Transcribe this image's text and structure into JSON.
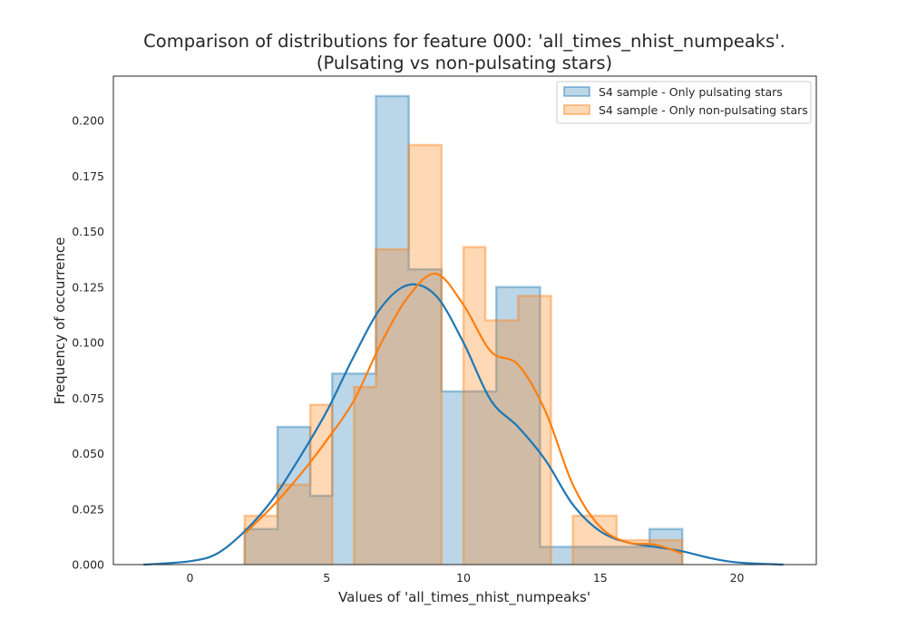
{
  "chart_data": {
    "type": "histogram",
    "title_line1": "Comparison of distributions for feature 000: 'all_times_nhist_numpeaks'.",
    "title_line2": "(Pulsating vs non-pulsating stars)",
    "xlabel": "Values of 'all_times_nhist_numpeaks'",
    "ylabel": "Frequency of occurrence",
    "xlim": [
      -2.8,
      22.9
    ],
    "ylim": [
      0,
      0.22
    ],
    "x_ticks": [
      0,
      5,
      10,
      15,
      20
    ],
    "y_ticks": [
      0.0,
      0.025,
      0.05,
      0.075,
      0.1,
      0.125,
      0.15,
      0.175,
      0.2
    ],
    "y_tick_labels": [
      "0.000",
      "0.025",
      "0.050",
      "0.075",
      "0.100",
      "0.125",
      "0.150",
      "0.175",
      "0.200"
    ],
    "grid": false,
    "legend_position": "top-right",
    "series": [
      {
        "name": "S4 sample - Only pulsating stars",
        "color": "#1f77b4",
        "hist_bins": [
          {
            "x0": 2.0,
            "x1": 3.2,
            "y": 0.016
          },
          {
            "x0": 3.2,
            "x1": 4.4,
            "y": 0.062
          },
          {
            "x0": 4.4,
            "x1": 5.2,
            "y": 0.031
          },
          {
            "x0": 5.2,
            "x1": 6.8,
            "y": 0.086
          },
          {
            "x0": 6.8,
            "x1": 8.0,
            "y": 0.211
          },
          {
            "x0": 8.0,
            "x1": 9.2,
            "y": 0.133
          },
          {
            "x0": 9.2,
            "x1": 10.0,
            "y": 0.078
          },
          {
            "x0": 10.0,
            "x1": 11.2,
            "y": 0.078
          },
          {
            "x0": 11.2,
            "x1": 12.8,
            "y": 0.125
          },
          {
            "x0": 12.8,
            "x1": 14.0,
            "y": 0.008
          },
          {
            "x0": 14.0,
            "x1": 15.2,
            "y": 0.008
          },
          {
            "x0": 15.2,
            "x1": 16.8,
            "y": 0.008
          },
          {
            "x0": 16.8,
            "x1": 18.0,
            "y": 0.016
          }
        ],
        "kde": [
          [
            -1.7,
            0.0
          ],
          [
            0.0,
            0.0015
          ],
          [
            1.0,
            0.005
          ],
          [
            2.0,
            0.015
          ],
          [
            3.0,
            0.029
          ],
          [
            4.0,
            0.048
          ],
          [
            5.0,
            0.069
          ],
          [
            6.0,
            0.094
          ],
          [
            7.0,
            0.116
          ],
          [
            8.0,
            0.126
          ],
          [
            9.0,
            0.121
          ],
          [
            10.0,
            0.1
          ],
          [
            11.0,
            0.074
          ],
          [
            12.0,
            0.062
          ],
          [
            13.0,
            0.047
          ],
          [
            14.0,
            0.027
          ],
          [
            15.0,
            0.015
          ],
          [
            16.0,
            0.01
          ],
          [
            17.0,
            0.008
          ],
          [
            18.0,
            0.006
          ],
          [
            19.0,
            0.003
          ],
          [
            20.0,
            0.001
          ],
          [
            21.7,
            0.0
          ]
        ]
      },
      {
        "name": "S4 sample - Only non-pulsating stars",
        "color": "#ff7f0e",
        "hist_bins": [
          {
            "x0": 2.0,
            "x1": 3.2,
            "y": 0.022
          },
          {
            "x0": 3.2,
            "x1": 4.4,
            "y": 0.036
          },
          {
            "x0": 4.4,
            "x1": 5.2,
            "y": 0.072
          },
          {
            "x0": 6.0,
            "x1": 6.8,
            "y": 0.08
          },
          {
            "x0": 6.8,
            "x1": 8.0,
            "y": 0.142
          },
          {
            "x0": 8.0,
            "x1": 9.2,
            "y": 0.189
          },
          {
            "x0": 10.0,
            "x1": 10.8,
            "y": 0.143
          },
          {
            "x0": 10.8,
            "x1": 12.0,
            "y": 0.11
          },
          {
            "x0": 12.0,
            "x1": 13.2,
            "y": 0.121
          },
          {
            "x0": 14.0,
            "x1": 15.6,
            "y": 0.022
          },
          {
            "x0": 15.6,
            "x1": 16.8,
            "y": 0.011
          },
          {
            "x0": 16.8,
            "x1": 18.0,
            "y": 0.011
          }
        ],
        "kde": [
          [
            2.0,
            0.014
          ],
          [
            3.0,
            0.026
          ],
          [
            4.0,
            0.04
          ],
          [
            5.0,
            0.056
          ],
          [
            6.0,
            0.074
          ],
          [
            7.0,
            0.1
          ],
          [
            8.0,
            0.121
          ],
          [
            9.0,
            0.131
          ],
          [
            10.0,
            0.117
          ],
          [
            11.0,
            0.096
          ],
          [
            12.0,
            0.09
          ],
          [
            13.0,
            0.069
          ],
          [
            14.0,
            0.036
          ],
          [
            15.0,
            0.017
          ],
          [
            16.0,
            0.01
          ],
          [
            17.0,
            0.009
          ],
          [
            18.0,
            0.005
          ]
        ]
      }
    ]
  }
}
